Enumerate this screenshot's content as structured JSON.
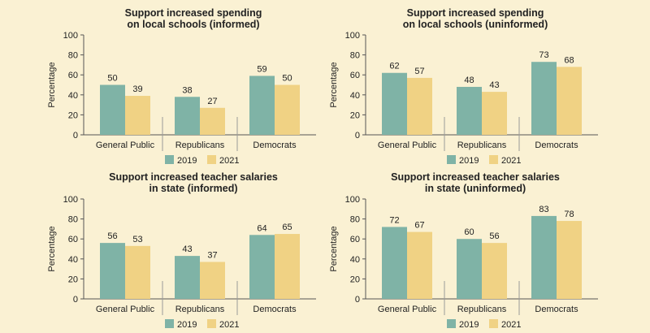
{
  "colors": {
    "s2019": "#7fb3a6",
    "s2021": "#f0d284",
    "background": "#faf1d3"
  },
  "chart_data": [
    {
      "type": "bar",
      "title_lines": [
        "Support increased spending",
        "on local schools (informed)"
      ],
      "ylabel": "Percentage",
      "ylim": [
        0,
        100
      ],
      "yticks": [
        "0",
        "20",
        "40",
        "60",
        "80",
        "100"
      ],
      "categories": [
        "General Public",
        "Republicans",
        "Democrats"
      ],
      "series": [
        {
          "name": "2019",
          "values": [
            50,
            38,
            59
          ]
        },
        {
          "name": "2021",
          "values": [
            39,
            27,
            50
          ]
        }
      ]
    },
    {
      "type": "bar",
      "title_lines": [
        "Support increased spending",
        "on local schools (uninformed)"
      ],
      "ylabel": "Percentage",
      "ylim": [
        0,
        100
      ],
      "yticks": [
        "0",
        "20",
        "40",
        "60",
        "80",
        "100"
      ],
      "categories": [
        "General Public",
        "Republicans",
        "Democrats"
      ],
      "series": [
        {
          "name": "2019",
          "values": [
            62,
            48,
            73
          ]
        },
        {
          "name": "2021",
          "values": [
            57,
            43,
            68
          ]
        }
      ]
    },
    {
      "type": "bar",
      "title_lines": [
        "Support increased teacher salaries",
        "in state (informed)"
      ],
      "ylabel": "Percentage",
      "ylim": [
        0,
        100
      ],
      "yticks": [
        "0",
        "20",
        "40",
        "60",
        "80",
        "100"
      ],
      "categories": [
        "General Public",
        "Republicans",
        "Democrats"
      ],
      "series": [
        {
          "name": "2019",
          "values": [
            56,
            43,
            64
          ]
        },
        {
          "name": "2021",
          "values": [
            53,
            37,
            65
          ]
        }
      ]
    },
    {
      "type": "bar",
      "title_lines": [
        "Support increased teacher salaries",
        "in state (uninformed)"
      ],
      "ylabel": "Percentage",
      "ylim": [
        0,
        100
      ],
      "yticks": [
        "0",
        "20",
        "40",
        "60",
        "80",
        "100"
      ],
      "categories": [
        "General Public",
        "Republicans",
        "Democrats"
      ],
      "series": [
        {
          "name": "2019",
          "values": [
            72,
            60,
            83
          ]
        },
        {
          "name": "2021",
          "values": [
            67,
            56,
            78
          ]
        }
      ]
    }
  ]
}
